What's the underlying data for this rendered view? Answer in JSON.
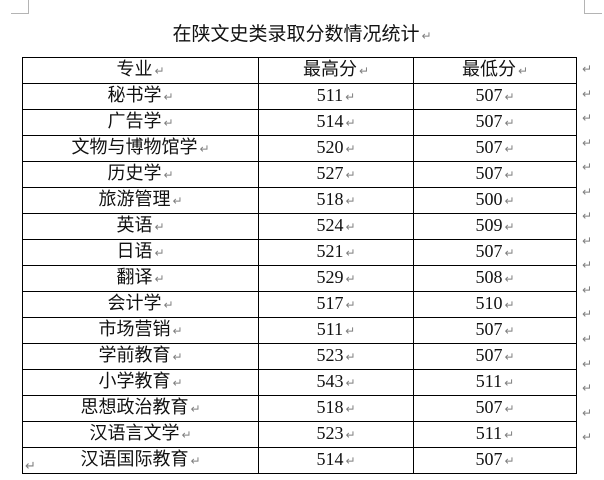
{
  "page": {
    "title": "在陕文史类录取分数情况统计",
    "paragraph_mark": "↵",
    "marks_color": "#7f7f7f",
    "border_color": "#000000",
    "corner_mark_color": "#b4b4b4",
    "background": "#ffffff"
  },
  "table": {
    "headers": [
      "专业",
      "最高分",
      "最低分"
    ],
    "rows": [
      {
        "major": "秘书学",
        "max": "511",
        "min": "507"
      },
      {
        "major": "广告学",
        "max": "514",
        "min": "507"
      },
      {
        "major": "文物与博物馆学",
        "max": "520",
        "min": "507"
      },
      {
        "major": "历史学",
        "max": "527",
        "min": "507"
      },
      {
        "major": "旅游管理",
        "max": "518",
        "min": "500"
      },
      {
        "major": "英语",
        "max": "524",
        "min": "509"
      },
      {
        "major": "日语",
        "max": "521",
        "min": "507"
      },
      {
        "major": "翻译",
        "max": "529",
        "min": "508"
      },
      {
        "major": "会计学",
        "max": "517",
        "min": "510"
      },
      {
        "major": "市场营销",
        "max": "511",
        "min": "507"
      },
      {
        "major": "学前教育",
        "max": "523",
        "min": "507"
      },
      {
        "major": "小学教育",
        "max": "543",
        "min": "511"
      },
      {
        "major": "思想政治教育",
        "max": "518",
        "min": "507"
      },
      {
        "major": "汉语言文学",
        "max": "523",
        "min": "511"
      },
      {
        "major": "汉语国际教育",
        "max": "514",
        "min": "507"
      }
    ]
  }
}
